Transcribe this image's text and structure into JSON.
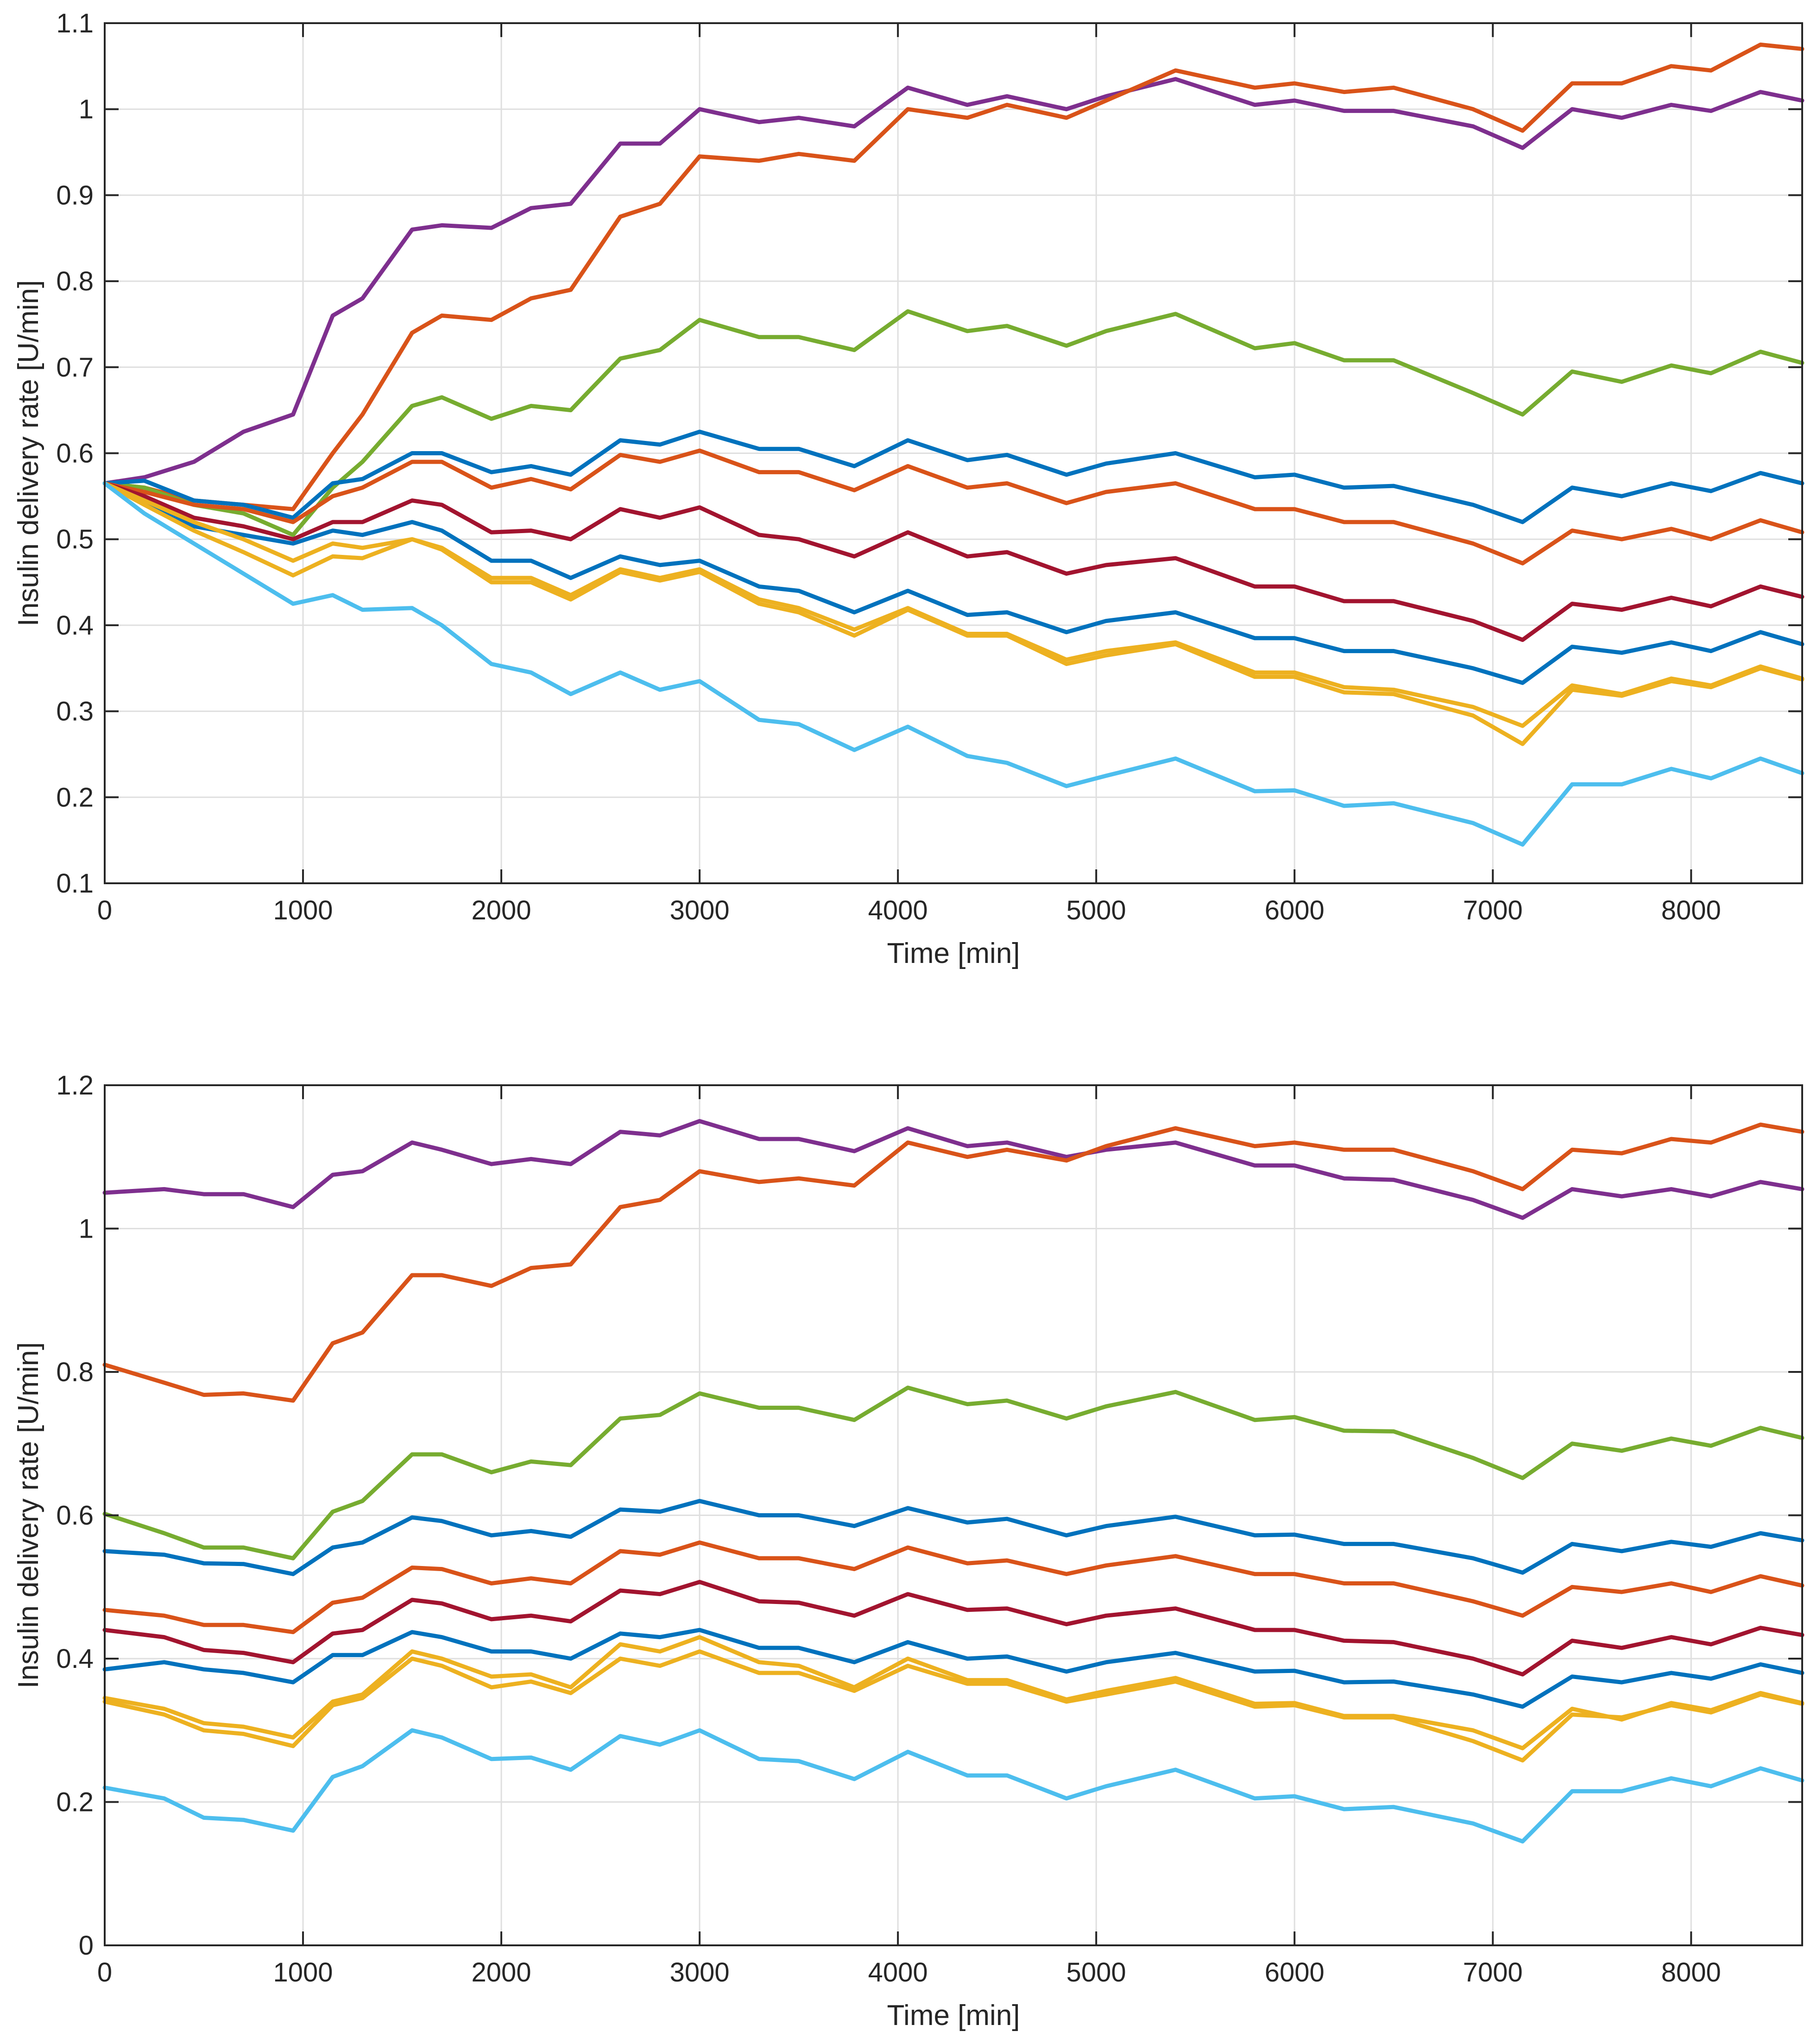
{
  "chart_data": [
    {
      "type": "line",
      "title": "",
      "xlabel": "Time [min]",
      "ylabel": "Insulin delivery rate [U/min]",
      "xlim": [
        0,
        8560
      ],
      "ylim": [
        0.1,
        1.1
      ],
      "grid": true,
      "xticks": [
        0,
        1000,
        2000,
        3000,
        4000,
        5000,
        6000,
        7000,
        8000
      ],
      "xtick_labels": [
        "0",
        "1000",
        "2000",
        "3000",
        "4000",
        "5000",
        "6000",
        "7000",
        "8000"
      ],
      "yticks": [
        0.1,
        0.2,
        0.3,
        0.4,
        0.5,
        0.6,
        0.7,
        0.8,
        0.9,
        1.0,
        1.1
      ],
      "ytick_labels": [
        "0.1",
        "0.2",
        "0.3",
        "0.4",
        "0.5",
        "0.6",
        "0.7",
        "0.8",
        "0.9",
        "1",
        "1.1"
      ],
      "x": [
        0,
        200,
        450,
        700,
        950,
        1150,
        1300,
        1550,
        1700,
        1950,
        2150,
        2350,
        2600,
        2800,
        3000,
        3300,
        3500,
        3780,
        4050,
        4350,
        4550,
        4850,
        5050,
        5400,
        5800,
        6000,
        6250,
        6500,
        6900,
        7150,
        7400,
        7650,
        7900,
        8100,
        8350,
        8560
      ],
      "series": [
        {
          "name": "purple",
          "color": "#7E2F8E",
          "values": [
            0.565,
            0.572,
            0.59,
            0.625,
            0.645,
            0.76,
            0.78,
            0.86,
            0.865,
            0.862,
            0.885,
            0.89,
            0.96,
            0.96,
            1.0,
            0.985,
            0.99,
            0.98,
            1.025,
            1.005,
            1.015,
            1.0,
            1.015,
            1.035,
            1.005,
            1.01,
            0.998,
            0.998,
            0.98,
            0.955,
            1.0,
            0.99,
            1.005,
            0.998,
            1.02,
            1.01
          ]
        },
        {
          "name": "orange",
          "color": "#D95319",
          "values": [
            0.565,
            0.56,
            0.545,
            0.54,
            0.535,
            0.6,
            0.645,
            0.74,
            0.76,
            0.755,
            0.78,
            0.79,
            0.875,
            0.89,
            0.945,
            0.94,
            0.948,
            0.94,
            1.0,
            0.99,
            1.005,
            0.99,
            1.01,
            1.045,
            1.025,
            1.03,
            1.02,
            1.025,
            1.0,
            0.975,
            1.03,
            1.03,
            1.05,
            1.045,
            1.075,
            1.07
          ]
        },
        {
          "name": "green",
          "color": "#77AC30",
          "values": [
            0.565,
            0.56,
            0.54,
            0.53,
            0.505,
            0.56,
            0.59,
            0.655,
            0.665,
            0.64,
            0.655,
            0.65,
            0.71,
            0.72,
            0.755,
            0.735,
            0.735,
            0.72,
            0.765,
            0.742,
            0.748,
            0.725,
            0.742,
            0.762,
            0.722,
            0.728,
            0.708,
            0.708,
            0.67,
            0.645,
            0.695,
            0.683,
            0.702,
            0.693,
            0.718,
            0.705
          ]
        },
        {
          "name": "blue",
          "color": "#0072BD",
          "values": [
            0.565,
            0.568,
            0.545,
            0.54,
            0.525,
            0.565,
            0.57,
            0.6,
            0.6,
            0.578,
            0.585,
            0.575,
            0.615,
            0.61,
            0.625,
            0.605,
            0.605,
            0.585,
            0.615,
            0.592,
            0.598,
            0.575,
            0.588,
            0.6,
            0.572,
            0.575,
            0.56,
            0.562,
            0.54,
            0.52,
            0.56,
            0.55,
            0.565,
            0.556,
            0.577,
            0.565
          ]
        },
        {
          "name": "orange",
          "color": "#D95319",
          "values": [
            0.565,
            0.555,
            0.54,
            0.535,
            0.52,
            0.55,
            0.56,
            0.59,
            0.59,
            0.56,
            0.57,
            0.558,
            0.598,
            0.59,
            0.603,
            0.578,
            0.578,
            0.557,
            0.585,
            0.56,
            0.565,
            0.542,
            0.555,
            0.565,
            0.535,
            0.535,
            0.52,
            0.52,
            0.495,
            0.472,
            0.51,
            0.5,
            0.512,
            0.5,
            0.522,
            0.508
          ]
        },
        {
          "name": "dark red",
          "color": "#A2142F",
          "values": [
            0.565,
            0.55,
            0.525,
            0.515,
            0.5,
            0.52,
            0.52,
            0.545,
            0.54,
            0.508,
            0.51,
            0.5,
            0.535,
            0.525,
            0.537,
            0.505,
            0.5,
            0.48,
            0.508,
            0.48,
            0.485,
            0.46,
            0.47,
            0.478,
            0.445,
            0.445,
            0.428,
            0.428,
            0.405,
            0.383,
            0.425,
            0.418,
            0.432,
            0.422,
            0.445,
            0.433
          ]
        },
        {
          "name": "blue",
          "color": "#0072BD",
          "values": [
            0.565,
            0.545,
            0.515,
            0.505,
            0.495,
            0.51,
            0.505,
            0.52,
            0.51,
            0.475,
            0.475,
            0.455,
            0.48,
            0.47,
            0.475,
            0.445,
            0.44,
            0.415,
            0.44,
            0.412,
            0.415,
            0.392,
            0.405,
            0.415,
            0.385,
            0.385,
            0.37,
            0.37,
            0.35,
            0.333,
            0.375,
            0.368,
            0.38,
            0.37,
            0.392,
            0.378
          ]
        },
        {
          "name": "yellow",
          "color": "#EDB120",
          "values": [
            0.565,
            0.545,
            0.52,
            0.5,
            0.475,
            0.495,
            0.49,
            0.5,
            0.49,
            0.455,
            0.455,
            0.435,
            0.465,
            0.455,
            0.465,
            0.43,
            0.42,
            0.395,
            0.42,
            0.39,
            0.39,
            0.36,
            0.37,
            0.38,
            0.345,
            0.345,
            0.328,
            0.325,
            0.305,
            0.283,
            0.33,
            0.32,
            0.338,
            0.33,
            0.352,
            0.338
          ]
        },
        {
          "name": "yellow",
          "color": "#EDB120",
          "values": [
            0.565,
            0.54,
            0.51,
            0.485,
            0.458,
            0.48,
            0.478,
            0.5,
            0.488,
            0.45,
            0.45,
            0.43,
            0.462,
            0.452,
            0.462,
            0.425,
            0.415,
            0.388,
            0.418,
            0.388,
            0.388,
            0.355,
            0.365,
            0.378,
            0.34,
            0.34,
            0.322,
            0.32,
            0.295,
            0.262,
            0.325,
            0.318,
            0.335,
            0.328,
            0.35,
            0.337
          ]
        },
        {
          "name": "light blue",
          "color": "#4DBEEE",
          "values": [
            0.565,
            0.53,
            0.495,
            0.46,
            0.425,
            0.435,
            0.418,
            0.42,
            0.4,
            0.355,
            0.345,
            0.32,
            0.345,
            0.325,
            0.335,
            0.29,
            0.285,
            0.255,
            0.282,
            0.248,
            0.24,
            0.213,
            0.225,
            0.245,
            0.207,
            0.208,
            0.19,
            0.193,
            0.17,
            0.145,
            0.215,
            0.215,
            0.233,
            0.222,
            0.245,
            0.228
          ]
        }
      ]
    },
    {
      "type": "line",
      "title": "",
      "xlabel": "Time [min]",
      "ylabel": "Insulin delivery rate [U/min]",
      "xlim": [
        0,
        8560
      ],
      "ylim": [
        0,
        1.2
      ],
      "grid": true,
      "xticks": [
        0,
        1000,
        2000,
        3000,
        4000,
        5000,
        6000,
        7000,
        8000
      ],
      "xtick_labels": [
        "0",
        "1000",
        "2000",
        "3000",
        "4000",
        "5000",
        "6000",
        "7000",
        "8000"
      ],
      "yticks": [
        0,
        0.2,
        0.4,
        0.6,
        0.8,
        1.0,
        1.2
      ],
      "ytick_labels": [
        "0",
        "0.2",
        "0.4",
        "0.6",
        "0.8",
        "1",
        "1.2"
      ],
      "x": [
        0,
        300,
        500,
        700,
        950,
        1150,
        1300,
        1550,
        1700,
        1950,
        2150,
        2350,
        2600,
        2800,
        3000,
        3300,
        3500,
        3780,
        4050,
        4350,
        4550,
        4850,
        5050,
        5400,
        5800,
        6000,
        6250,
        6500,
        6900,
        7150,
        7400,
        7650,
        7900,
        8100,
        8350,
        8560
      ],
      "series": [
        {
          "name": "purple",
          "color": "#7E2F8E",
          "values": [
            1.05,
            1.055,
            1.048,
            1.048,
            1.03,
            1.075,
            1.08,
            1.12,
            1.11,
            1.09,
            1.097,
            1.09,
            1.135,
            1.13,
            1.15,
            1.125,
            1.125,
            1.108,
            1.14,
            1.115,
            1.12,
            1.1,
            1.11,
            1.12,
            1.088,
            1.088,
            1.07,
            1.068,
            1.04,
            1.015,
            1.055,
            1.045,
            1.055,
            1.045,
            1.065,
            1.055
          ]
        },
        {
          "name": "orange",
          "color": "#D95319",
          "values": [
            0.81,
            0.785,
            0.768,
            0.77,
            0.76,
            0.84,
            0.855,
            0.935,
            0.935,
            0.92,
            0.945,
            0.95,
            1.03,
            1.04,
            1.08,
            1.065,
            1.07,
            1.06,
            1.12,
            1.1,
            1.11,
            1.095,
            1.115,
            1.14,
            1.115,
            1.12,
            1.11,
            1.11,
            1.08,
            1.055,
            1.11,
            1.105,
            1.125,
            1.12,
            1.145,
            1.135
          ]
        },
        {
          "name": "green",
          "color": "#77AC30",
          "values": [
            0.602,
            0.575,
            0.555,
            0.555,
            0.54,
            0.605,
            0.62,
            0.685,
            0.685,
            0.66,
            0.675,
            0.67,
            0.735,
            0.74,
            0.77,
            0.75,
            0.75,
            0.733,
            0.778,
            0.755,
            0.76,
            0.735,
            0.752,
            0.772,
            0.733,
            0.737,
            0.718,
            0.717,
            0.68,
            0.652,
            0.7,
            0.69,
            0.707,
            0.697,
            0.722,
            0.708
          ]
        },
        {
          "name": "blue",
          "color": "#0072BD",
          "values": [
            0.55,
            0.545,
            0.533,
            0.532,
            0.518,
            0.555,
            0.562,
            0.597,
            0.592,
            0.572,
            0.578,
            0.57,
            0.608,
            0.605,
            0.62,
            0.6,
            0.6,
            0.585,
            0.61,
            0.59,
            0.595,
            0.572,
            0.585,
            0.598,
            0.572,
            0.573,
            0.56,
            0.56,
            0.54,
            0.52,
            0.56,
            0.55,
            0.563,
            0.556,
            0.575,
            0.565
          ]
        },
        {
          "name": "orange",
          "color": "#D95319",
          "values": [
            0.468,
            0.46,
            0.447,
            0.447,
            0.437,
            0.478,
            0.485,
            0.527,
            0.525,
            0.505,
            0.512,
            0.505,
            0.55,
            0.545,
            0.562,
            0.54,
            0.54,
            0.525,
            0.555,
            0.533,
            0.537,
            0.518,
            0.53,
            0.543,
            0.518,
            0.518,
            0.505,
            0.505,
            0.48,
            0.46,
            0.5,
            0.493,
            0.505,
            0.493,
            0.515,
            0.502
          ]
        },
        {
          "name": "dark red",
          "color": "#A2142F",
          "values": [
            0.44,
            0.43,
            0.412,
            0.408,
            0.395,
            0.435,
            0.44,
            0.482,
            0.477,
            0.455,
            0.46,
            0.452,
            0.495,
            0.49,
            0.507,
            0.48,
            0.478,
            0.46,
            0.49,
            0.468,
            0.47,
            0.448,
            0.46,
            0.47,
            0.44,
            0.44,
            0.425,
            0.423,
            0.4,
            0.378,
            0.425,
            0.415,
            0.43,
            0.42,
            0.443,
            0.433
          ]
        },
        {
          "name": "blue",
          "color": "#0072BD",
          "values": [
            0.385,
            0.395,
            0.385,
            0.38,
            0.367,
            0.405,
            0.405,
            0.437,
            0.43,
            0.41,
            0.41,
            0.4,
            0.435,
            0.43,
            0.44,
            0.415,
            0.415,
            0.395,
            0.423,
            0.4,
            0.403,
            0.382,
            0.395,
            0.408,
            0.382,
            0.383,
            0.367,
            0.368,
            0.35,
            0.333,
            0.375,
            0.367,
            0.38,
            0.372,
            0.392,
            0.38
          ]
        },
        {
          "name": "yellow",
          "color": "#EDB120",
          "values": [
            0.345,
            0.33,
            0.31,
            0.305,
            0.29,
            0.34,
            0.35,
            0.41,
            0.4,
            0.375,
            0.378,
            0.36,
            0.42,
            0.41,
            0.43,
            0.395,
            0.39,
            0.36,
            0.4,
            0.37,
            0.37,
            0.343,
            0.355,
            0.373,
            0.337,
            0.338,
            0.32,
            0.32,
            0.3,
            0.275,
            0.33,
            0.315,
            0.338,
            0.328,
            0.352,
            0.338
          ]
        },
        {
          "name": "yellow",
          "color": "#EDB120",
          "values": [
            0.34,
            0.322,
            0.3,
            0.295,
            0.278,
            0.335,
            0.345,
            0.4,
            0.39,
            0.36,
            0.368,
            0.352,
            0.4,
            0.39,
            0.41,
            0.38,
            0.38,
            0.355,
            0.39,
            0.365,
            0.365,
            0.34,
            0.35,
            0.368,
            0.333,
            0.335,
            0.318,
            0.318,
            0.285,
            0.258,
            0.322,
            0.318,
            0.335,
            0.325,
            0.35,
            0.337
          ]
        },
        {
          "name": "light blue",
          "color": "#4DBEEE",
          "values": [
            0.22,
            0.205,
            0.178,
            0.175,
            0.16,
            0.235,
            0.25,
            0.3,
            0.29,
            0.26,
            0.262,
            0.245,
            0.292,
            0.28,
            0.3,
            0.26,
            0.257,
            0.232,
            0.27,
            0.237,
            0.237,
            0.205,
            0.222,
            0.245,
            0.205,
            0.208,
            0.19,
            0.193,
            0.17,
            0.145,
            0.215,
            0.215,
            0.233,
            0.222,
            0.247,
            0.23
          ]
        }
      ]
    }
  ]
}
